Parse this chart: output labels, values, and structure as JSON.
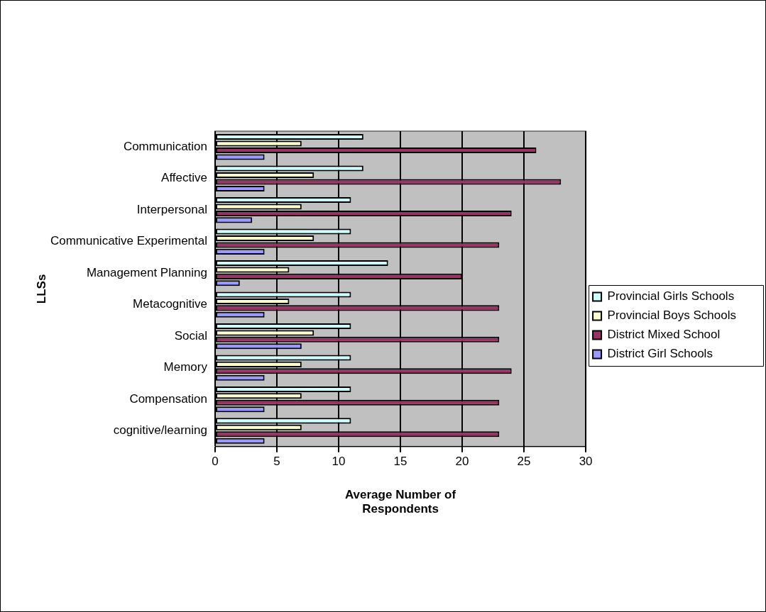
{
  "chart_data": {
    "type": "bar",
    "orientation": "horizontal",
    "xlabel": "Average Number of Respondents",
    "ylabel": "LLSs",
    "categories": [
      "Communication",
      "Affective",
      "Interpersonal",
      "Communicative Experimental",
      "Management Planning",
      "Metacognitive",
      "Social",
      "Memory",
      "Compensation",
      "cognitive/learning"
    ],
    "series": [
      {
        "name": "Provincial Girls Schools",
        "color": "#ccffff",
        "values": [
          12,
          12,
          11,
          11,
          14,
          11,
          11,
          11,
          11,
          11
        ]
      },
      {
        "name": "Provincial Boys Schools",
        "color": "#ffffcc",
        "values": [
          7,
          8,
          7,
          8,
          6,
          6,
          8,
          7,
          7,
          7
        ]
      },
      {
        "name": "District Mixed School",
        "color": "#993366",
        "values": [
          26,
          28,
          24,
          23,
          20,
          23,
          23,
          24,
          23,
          23
        ]
      },
      {
        "name": "District Girl Schools",
        "color": "#9999ff",
        "values": [
          4,
          4,
          3,
          4,
          2,
          4,
          7,
          4,
          4,
          4
        ]
      }
    ],
    "xlim": [
      0,
      30
    ],
    "xticks": [
      0,
      5,
      10,
      15,
      20,
      25,
      30
    ],
    "grid": "x",
    "legend": "right"
  }
}
